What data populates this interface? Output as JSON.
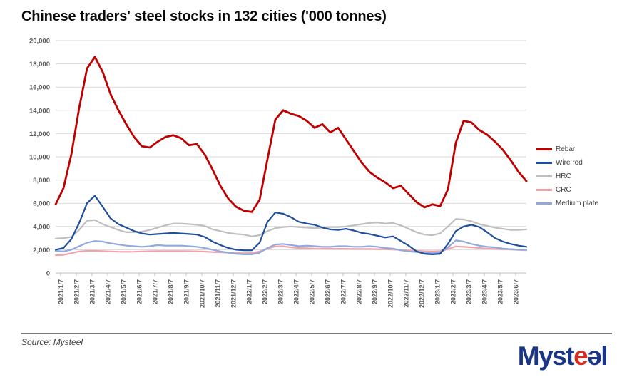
{
  "title": "Chinese traders' steel stocks in 132 cities ('000 tonnes)",
  "source_label": "Source: Mysteel",
  "logo": {
    "part1": "Myst",
    "part2": "e",
    "part3": "əl"
  },
  "colors": {
    "grid": "#D9D9D9",
    "axis_line": "#BFBFBF",
    "axis_text": "#595959",
    "legend_text": "#404040",
    "logo_blue": "#1B3586",
    "logo_red": "#D92C20"
  },
  "chart_data": {
    "type": "line",
    "title": "Chinese traders' steel stocks in 132 cities ('000 tonnes)",
    "xlabel": "",
    "ylabel": "",
    "grid": true,
    "legend_position": "right",
    "points_per_month": 2,
    "x_range_note": "weekly data sampled semi-monthly from 2021/1 to 2023/6 end",
    "x_tick_labels": [
      "2021/1/7",
      "2021/2/7",
      "2021/3/7",
      "2021/4/7",
      "2021/5/7",
      "2021/6/7",
      "2021/7/7",
      "2021/8/7",
      "2021/9/7",
      "2021/10/7",
      "2021/11/7",
      "2021/12/7",
      "2022/1/7",
      "2022/2/7",
      "2022/3/7",
      "2022/4/7",
      "2022/5/7",
      "2022/6/7",
      "2022/7/7",
      "2022/8/7",
      "2022/9/7",
      "2022/10/7",
      "2022/11/7",
      "2022/12/7",
      "2023/1/7",
      "2023/2/7",
      "2023/3/7",
      "2023/4/7",
      "2023/5/7",
      "2023/6/7"
    ],
    "y_axis": {
      "min": 0,
      "max": 20000,
      "step": 2000,
      "tick_labels": [
        "0",
        "2,000",
        "4,000",
        "6,000",
        "8,000",
        "10,000",
        "12,000",
        "14,000",
        "16,000",
        "18,000",
        "20,000"
      ]
    },
    "series": [
      {
        "name": "Rebar",
        "color": "#C00000",
        "values": [
          5900,
          7300,
          10200,
          14200,
          17600,
          18600,
          17300,
          15400,
          14000,
          12800,
          11700,
          10900,
          10800,
          11300,
          11700,
          11850,
          11600,
          11000,
          11100,
          10200,
          8900,
          7500,
          6400,
          5700,
          5350,
          5250,
          6300,
          9800,
          13200,
          14000,
          13700,
          13500,
          13100,
          12500,
          12800,
          12100,
          12500,
          11500,
          10500,
          9500,
          8700,
          8200,
          7800,
          7300,
          7500,
          6800,
          6100,
          5650,
          5900,
          5750,
          7200,
          11200,
          13100,
          12950,
          12300,
          11900,
          11300,
          10600,
          9700,
          8700,
          7900
        ]
      },
      {
        "name": "Wire rod",
        "color": "#1F4E9C",
        "values": [
          2000,
          2150,
          2900,
          4300,
          6000,
          6650,
          5700,
          4700,
          4200,
          3900,
          3600,
          3400,
          3300,
          3350,
          3400,
          3450,
          3400,
          3350,
          3300,
          3100,
          2700,
          2400,
          2150,
          2000,
          1950,
          1950,
          2600,
          4400,
          5200,
          5100,
          4800,
          4400,
          4250,
          4150,
          3900,
          3750,
          3700,
          3800,
          3650,
          3450,
          3350,
          3200,
          3050,
          3150,
          2750,
          2350,
          1850,
          1650,
          1600,
          1650,
          2500,
          3600,
          4000,
          4150,
          3950,
          3500,
          3000,
          2700,
          2500,
          2350,
          2250
        ]
      },
      {
        "name": "HRC",
        "color": "#BFBFBF",
        "values": [
          2950,
          3000,
          3100,
          3700,
          4500,
          4550,
          4200,
          3950,
          3700,
          3500,
          3500,
          3550,
          3700,
          3900,
          4100,
          4250,
          4250,
          4200,
          4150,
          4050,
          3750,
          3600,
          3450,
          3350,
          3300,
          3150,
          3250,
          3600,
          3850,
          3950,
          4000,
          3950,
          3900,
          3850,
          3900,
          3950,
          3950,
          4000,
          4100,
          4200,
          4300,
          4350,
          4250,
          4300,
          4100,
          3800,
          3500,
          3300,
          3250,
          3400,
          4000,
          4650,
          4600,
          4450,
          4200,
          4050,
          3900,
          3800,
          3700,
          3700,
          3750
        ]
      },
      {
        "name": "CRC",
        "color": "#F2A2AC",
        "values": [
          1530,
          1560,
          1700,
          1850,
          1900,
          1900,
          1880,
          1850,
          1830,
          1820,
          1830,
          1850,
          1870,
          1880,
          1880,
          1880,
          1880,
          1870,
          1860,
          1840,
          1800,
          1780,
          1750,
          1720,
          1700,
          1720,
          1850,
          2100,
          2280,
          2300,
          2200,
          2150,
          2120,
          2100,
          2100,
          2090,
          2080,
          2080,
          2070,
          2060,
          2060,
          2050,
          2040,
          2020,
          1980,
          1940,
          1900,
          1870,
          1860,
          1880,
          2050,
          2280,
          2250,
          2200,
          2150,
          2100,
          2070,
          2040,
          2010,
          1980,
          1950
        ]
      },
      {
        "name": "Medium plate",
        "color": "#8FAADC",
        "values": [
          1900,
          1850,
          2000,
          2300,
          2600,
          2750,
          2700,
          2550,
          2450,
          2350,
          2300,
          2250,
          2300,
          2400,
          2350,
          2350,
          2350,
          2300,
          2250,
          2150,
          2000,
          1850,
          1750,
          1650,
          1600,
          1600,
          1750,
          2150,
          2450,
          2500,
          2400,
          2300,
          2350,
          2300,
          2250,
          2250,
          2300,
          2300,
          2250,
          2250,
          2300,
          2250,
          2150,
          2100,
          1950,
          1850,
          1800,
          1750,
          1700,
          1750,
          2200,
          2800,
          2700,
          2500,
          2350,
          2250,
          2200,
          2100,
          2050,
          2000,
          2000
        ]
      }
    ]
  }
}
